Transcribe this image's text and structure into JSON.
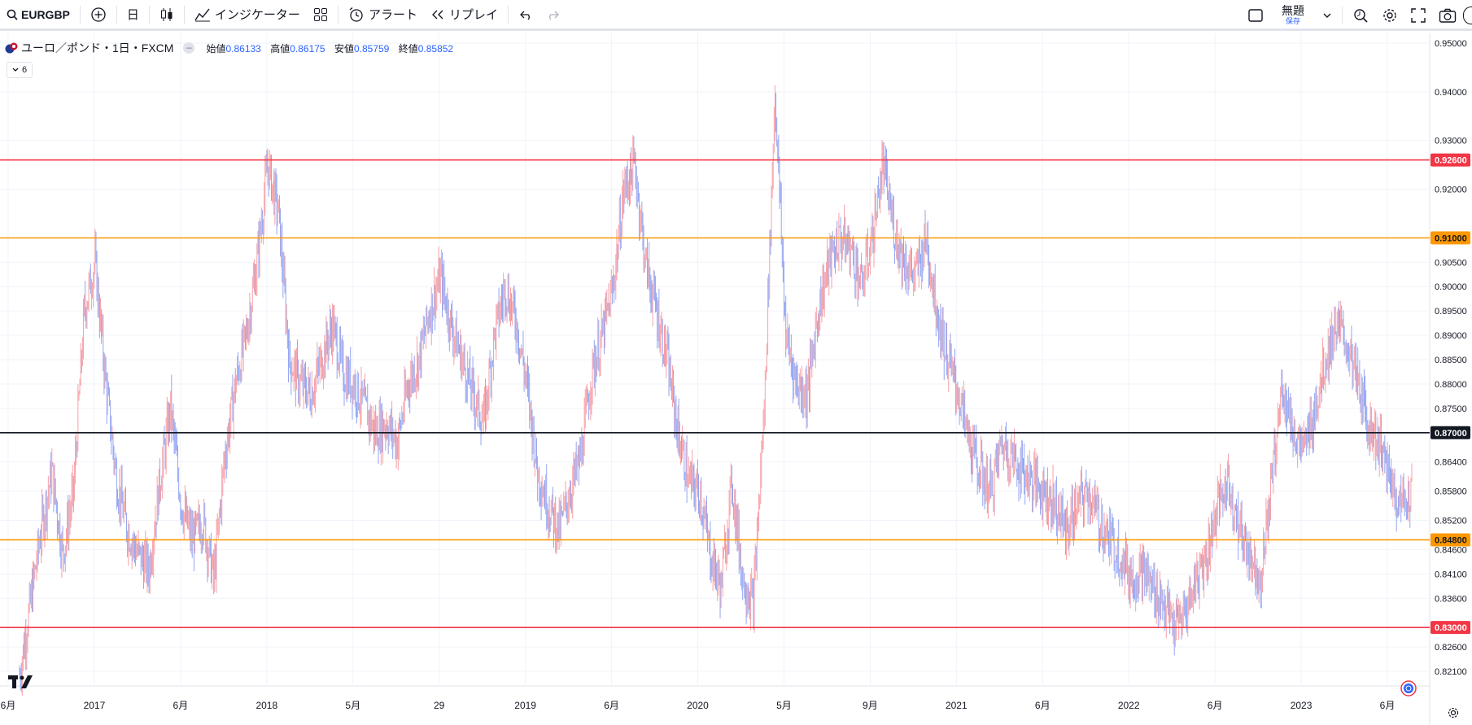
{
  "toolbar": {
    "symbol": "EURGBP",
    "timeframe": "日",
    "indicators_label": "インジケーター",
    "alert_label": "アラート",
    "replay_label": "リプレイ",
    "layout_title": "無題",
    "layout_save": "保存"
  },
  "legend": {
    "title": "ユーロ／ポンド・1日・FXCM",
    "open_label": "始値",
    "open_value": "0.86133",
    "high_label": "高値",
    "high_value": "0.86175",
    "low_label": "安値",
    "low_value": "0.85759",
    "close_label": "終値",
    "close_value": "0.85852",
    "indicator_count": "6"
  },
  "colors": {
    "red_level": "#f23645",
    "orange_level": "#ff9800",
    "black_level": "#131722",
    "up_candle": "#f7a1a7",
    "down_candle": "#94a5f2"
  },
  "y_axis": {
    "ticks": [
      "0.95000",
      "0.94000",
      "0.93000",
      "0.92000",
      "0.90500",
      "0.90000",
      "0.89500",
      "0.89000",
      "0.88500",
      "0.88000",
      "0.87500",
      "0.86400",
      "0.85800",
      "0.85200",
      "0.84600",
      "0.84100",
      "0.83600",
      "0.82600",
      "0.82100"
    ],
    "tick_values": [
      0.95,
      0.94,
      0.93,
      0.92,
      0.905,
      0.9,
      0.895,
      0.89,
      0.885,
      0.88,
      0.875,
      0.864,
      0.858,
      0.852,
      0.846,
      0.841,
      0.836,
      0.826,
      0.821
    ]
  },
  "levels": [
    {
      "label": "0.92600",
      "value": 0.926,
      "color": "#f23645"
    },
    {
      "label": "0.91000",
      "value": 0.91,
      "color": "#ff9800"
    },
    {
      "label": "0.87000",
      "value": 0.87,
      "color": "#131722"
    },
    {
      "label": "0.84800",
      "value": 0.848,
      "color": "#ff9800"
    },
    {
      "label": "0.83000",
      "value": 0.83,
      "color": "#f23645"
    }
  ],
  "x_axis": {
    "labels": [
      "6月",
      "2017",
      "6月",
      "2018",
      "5月",
      "29",
      "2019",
      "6月",
      "2020",
      "5月",
      "9月",
      "2021",
      "6月",
      "2022",
      "6月",
      "2023",
      "6月"
    ]
  },
  "chart_data": {
    "type": "candlestick",
    "symbol": "EURGBP",
    "interval": "1D",
    "ylim": [
      0.818,
      0.952
    ],
    "series": [
      {
        "name": "EURGBP",
        "values": [
          0.82,
          0.835,
          0.85,
          0.862,
          0.845,
          0.858,
          0.895,
          0.905,
          0.88,
          0.86,
          0.85,
          0.845,
          0.842,
          0.86,
          0.875,
          0.855,
          0.848,
          0.852,
          0.84,
          0.865,
          0.88,
          0.89,
          0.905,
          0.925,
          0.915,
          0.885,
          0.88,
          0.878,
          0.885,
          0.892,
          0.882,
          0.88,
          0.875,
          0.87,
          0.872,
          0.868,
          0.88,
          0.885,
          0.895,
          0.902,
          0.892,
          0.885,
          0.878,
          0.872,
          0.89,
          0.9,
          0.893,
          0.88,
          0.862,
          0.855,
          0.85,
          0.858,
          0.865,
          0.882,
          0.89,
          0.9,
          0.92,
          0.925,
          0.905,
          0.895,
          0.885,
          0.87,
          0.86,
          0.858,
          0.845,
          0.838,
          0.86,
          0.84,
          0.835,
          0.875,
          0.94,
          0.89,
          0.88,
          0.878,
          0.895,
          0.905,
          0.91,
          0.908,
          0.9,
          0.91,
          0.925,
          0.912,
          0.905,
          0.902,
          0.91,
          0.895,
          0.885,
          0.878,
          0.868,
          0.862,
          0.858,
          0.868,
          0.865,
          0.862,
          0.86,
          0.858,
          0.855,
          0.85,
          0.855,
          0.858,
          0.852,
          0.848,
          0.845,
          0.84,
          0.842,
          0.838,
          0.835,
          0.83,
          0.833,
          0.84,
          0.845,
          0.855,
          0.86,
          0.85,
          0.845,
          0.84,
          0.86,
          0.88,
          0.87,
          0.866,
          0.875,
          0.885,
          0.892,
          0.888,
          0.88,
          0.872,
          0.868,
          0.86,
          0.855,
          0.858
        ]
      }
    ]
  }
}
